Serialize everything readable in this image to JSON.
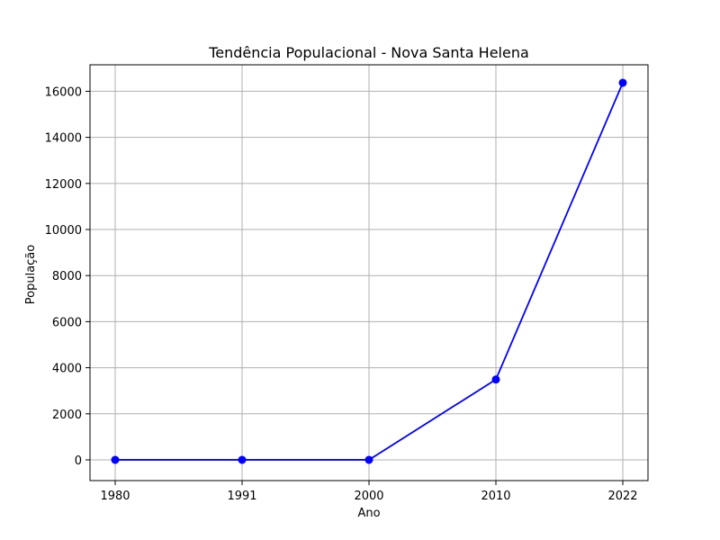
{
  "chart_data": {
    "type": "line",
    "title": "Tendência Populacional - Nova Santa Helena",
    "xlabel": "Ano",
    "ylabel": "População",
    "categories": [
      "1980",
      "1991",
      "2000",
      "2010",
      "2022"
    ],
    "series": [
      {
        "values": [
          0,
          0,
          0,
          3490,
          16370
        ]
      }
    ],
    "ylim": [
      -900,
      17150
    ],
    "yticks": [
      0,
      2000,
      4000,
      6000,
      8000,
      10000,
      12000,
      14000,
      16000
    ],
    "grid": true,
    "line_color": "#0000ff",
    "marker": "circle"
  }
}
